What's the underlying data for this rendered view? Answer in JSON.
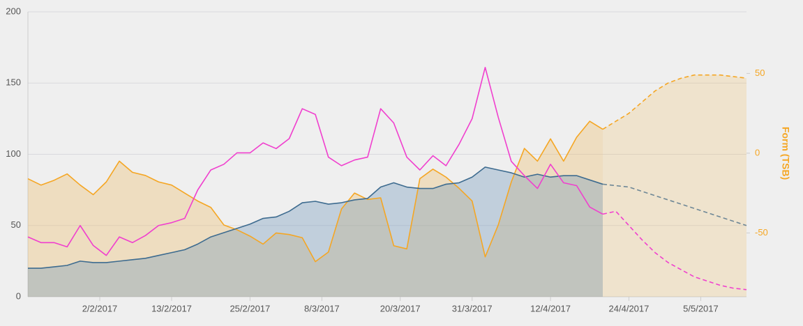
{
  "chart_data": {
    "type": "line",
    "y2label": "Form (TSB)",
    "x": [
      "22/1/2017",
      "24/1/2017",
      "26/1/2017",
      "28/1/2017",
      "30/1/2017",
      "1/2/2017",
      "3/2/2017",
      "5/2/2017",
      "7/2/2017",
      "9/2/2017",
      "11/2/2017",
      "13/2/2017",
      "15/2/2017",
      "17/2/2017",
      "19/2/2017",
      "21/2/2017",
      "23/2/2017",
      "25/2/2017",
      "27/2/2017",
      "1/3/2017",
      "3/3/2017",
      "5/3/2017",
      "7/3/2017",
      "9/3/2017",
      "11/3/2017",
      "13/3/2017",
      "15/3/2017",
      "17/3/2017",
      "19/3/2017",
      "21/3/2017",
      "23/3/2017",
      "25/3/2017",
      "27/3/2017",
      "29/3/2017",
      "31/3/2017",
      "2/4/2017",
      "4/4/2017",
      "6/4/2017",
      "8/4/2017",
      "10/4/2017",
      "12/4/2017",
      "14/4/2017",
      "16/4/2017",
      "18/4/2017",
      "20/4/2017",
      "22/4/2017",
      "24/4/2017",
      "26/4/2017",
      "28/4/2017",
      "30/4/2017",
      "2/5/2017",
      "4/5/2017",
      "6/5/2017",
      "8/5/2017",
      "10/5/2017",
      "12/5/2017"
    ],
    "xlim": [
      "22/1/2017",
      "12/5/2017"
    ],
    "xticks": [
      "2/2/2017",
      "13/2/2017",
      "25/2/2017",
      "8/3/2017",
      "20/3/2017",
      "31/3/2017",
      "12/4/2017",
      "24/4/2017",
      "5/5/2017"
    ],
    "ylim": [
      0,
      200
    ],
    "yticks": [
      0,
      50,
      100,
      150,
      200
    ],
    "y2lim": [
      -90,
      88.6
    ],
    "y2ticks": [
      -50,
      0,
      50
    ],
    "grid": true,
    "series": [
      {
        "color": "#f5a623",
        "fill": "rgba(238,190,105,0.35)",
        "axis": "y2",
        "dashed": false,
        "values": [
          -16,
          -20,
          -17,
          -13,
          -20,
          -26,
          -18,
          -5,
          -12,
          -14,
          -18,
          -20,
          -25,
          -30,
          -34,
          -45,
          -48,
          -52,
          -57,
          -50,
          -51,
          -53,
          -68,
          -62,
          -35,
          -25,
          -29,
          -28,
          -58,
          -60,
          -16,
          -10,
          -15,
          -22,
          -30,
          -65,
          -45,
          -18,
          3,
          -5,
          9,
          -5,
          10,
          20,
          15,
          null,
          null,
          null,
          null,
          null,
          null,
          null,
          null,
          null,
          null,
          null
        ]
      },
      {
        "color": "#f5a623",
        "fill": "rgba(238,190,105,0.25)",
        "axis": "y2",
        "dashed": true,
        "values": [
          null,
          null,
          null,
          null,
          null,
          null,
          null,
          null,
          null,
          null,
          null,
          null,
          null,
          null,
          null,
          null,
          null,
          null,
          null,
          null,
          null,
          null,
          null,
          null,
          null,
          null,
          null,
          null,
          null,
          null,
          null,
          null,
          null,
          null,
          null,
          null,
          null,
          null,
          null,
          null,
          null,
          null,
          null,
          null,
          15,
          20,
          25,
          32,
          39,
          44,
          47,
          49,
          49,
          49,
          48,
          47
        ]
      },
      {
        "color": "#3d6b8f",
        "fill": "rgba(110,150,185,0.35)",
        "dashed": false,
        "values": [
          20,
          20,
          21,
          22,
          25,
          24,
          24,
          25,
          26,
          27,
          29,
          31,
          33,
          37,
          42,
          45,
          48,
          51,
          55,
          56,
          60,
          66,
          67,
          65,
          66,
          68,
          69,
          77,
          80,
          77,
          76,
          76,
          79,
          80,
          84,
          91,
          89,
          87,
          84,
          86,
          84,
          85,
          85,
          82,
          79,
          null,
          null,
          null,
          null,
          null,
          null,
          null,
          null,
          null,
          null,
          null
        ]
      },
      {
        "color": "#6e8796",
        "dashed": true,
        "values": [
          null,
          null,
          null,
          null,
          null,
          null,
          null,
          null,
          null,
          null,
          null,
          null,
          null,
          null,
          null,
          null,
          null,
          null,
          null,
          null,
          null,
          null,
          null,
          null,
          null,
          null,
          null,
          null,
          null,
          null,
          null,
          null,
          null,
          null,
          null,
          null,
          null,
          null,
          null,
          null,
          null,
          null,
          null,
          null,
          79,
          78,
          77,
          74,
          71,
          68,
          65,
          62,
          59,
          56,
          53,
          50
        ]
      },
      {
        "color": "#f03fce",
        "dashed": false,
        "values": [
          42,
          38,
          38,
          35,
          50,
          36,
          29,
          42,
          38,
          43,
          50,
          52,
          55,
          75,
          89,
          93,
          101,
          101,
          108,
          104,
          111,
          132,
          128,
          98,
          92,
          96,
          98,
          132,
          122,
          98,
          89,
          99,
          92,
          107,
          125,
          161,
          126,
          95,
          85,
          76,
          93,
          80,
          78,
          63,
          58,
          null,
          null,
          null,
          null,
          null,
          null,
          null,
          null,
          null,
          null,
          null
        ]
      },
      {
        "color": "#f03fce",
        "dashed": true,
        "values": [
          null,
          null,
          null,
          null,
          null,
          null,
          null,
          null,
          null,
          null,
          null,
          null,
          null,
          null,
          null,
          null,
          null,
          null,
          null,
          null,
          null,
          null,
          null,
          null,
          null,
          null,
          null,
          null,
          null,
          null,
          null,
          null,
          null,
          null,
          null,
          null,
          null,
          null,
          null,
          null,
          null,
          null,
          null,
          null,
          58,
          60,
          50,
          40,
          31,
          24,
          19,
          14,
          11,
          8,
          6,
          5
        ]
      }
    ]
  }
}
